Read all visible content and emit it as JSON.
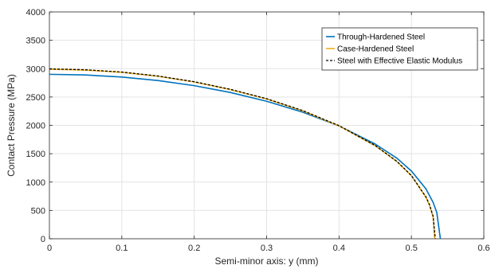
{
  "chart_data": {
    "type": "line",
    "title": "",
    "xlabel": "Semi-minor axis: y (mm)",
    "ylabel": "Contact Pressure (MPa)",
    "xlim": [
      0,
      0.6
    ],
    "ylim": [
      0,
      4000
    ],
    "xticks": [
      0,
      0.1,
      0.2,
      0.3,
      0.4,
      0.5,
      0.6
    ],
    "xtick_labels": [
      "0",
      "0.1",
      "0.2",
      "0.3",
      "0.4",
      "0.5",
      "0.6"
    ],
    "yticks": [
      0,
      500,
      1000,
      1500,
      2000,
      2500,
      3000,
      3500,
      4000
    ],
    "ytick_labels": [
      "0",
      "500",
      "1000",
      "1500",
      "2000",
      "2500",
      "3000",
      "3500",
      "4000"
    ],
    "grid": true,
    "legend_position": "top-right",
    "series": [
      {
        "name": "Through-Hardened Steel",
        "color": "#0072BD",
        "style": "solid",
        "x": [
          0,
          0.05,
          0.1,
          0.15,
          0.2,
          0.25,
          0.3,
          0.35,
          0.4,
          0.45,
          0.48,
          0.5,
          0.52,
          0.53,
          0.535,
          0.54
        ],
        "y": [
          2900,
          2888,
          2852,
          2790,
          2700,
          2580,
          2425,
          2232,
          1990,
          1670,
          1420,
          1195,
          880,
          640,
          465,
          0
        ]
      },
      {
        "name": "Case-Hardened Steel",
        "color": "#EDB120",
        "style": "solid",
        "x": [
          0,
          0.05,
          0.1,
          0.15,
          0.2,
          0.25,
          0.3,
          0.35,
          0.4,
          0.45,
          0.48,
          0.5,
          0.52,
          0.525,
          0.53,
          0.532
        ],
        "y": [
          2990,
          2975,
          2935,
          2865,
          2765,
          2630,
          2465,
          2255,
          1990,
          1640,
          1360,
          1110,
          730,
          590,
          380,
          0
        ]
      },
      {
        "name": "Steel with Effective Elastic Modulus",
        "color": "#000000",
        "style": "dashed",
        "x": [
          0,
          0.05,
          0.1,
          0.15,
          0.2,
          0.25,
          0.3,
          0.35,
          0.4,
          0.45,
          0.48,
          0.5,
          0.52,
          0.525,
          0.53,
          0.533
        ],
        "y": [
          2995,
          2980,
          2940,
          2870,
          2770,
          2635,
          2470,
          2260,
          1995,
          1645,
          1365,
          1115,
          740,
          600,
          395,
          0
        ]
      }
    ]
  }
}
